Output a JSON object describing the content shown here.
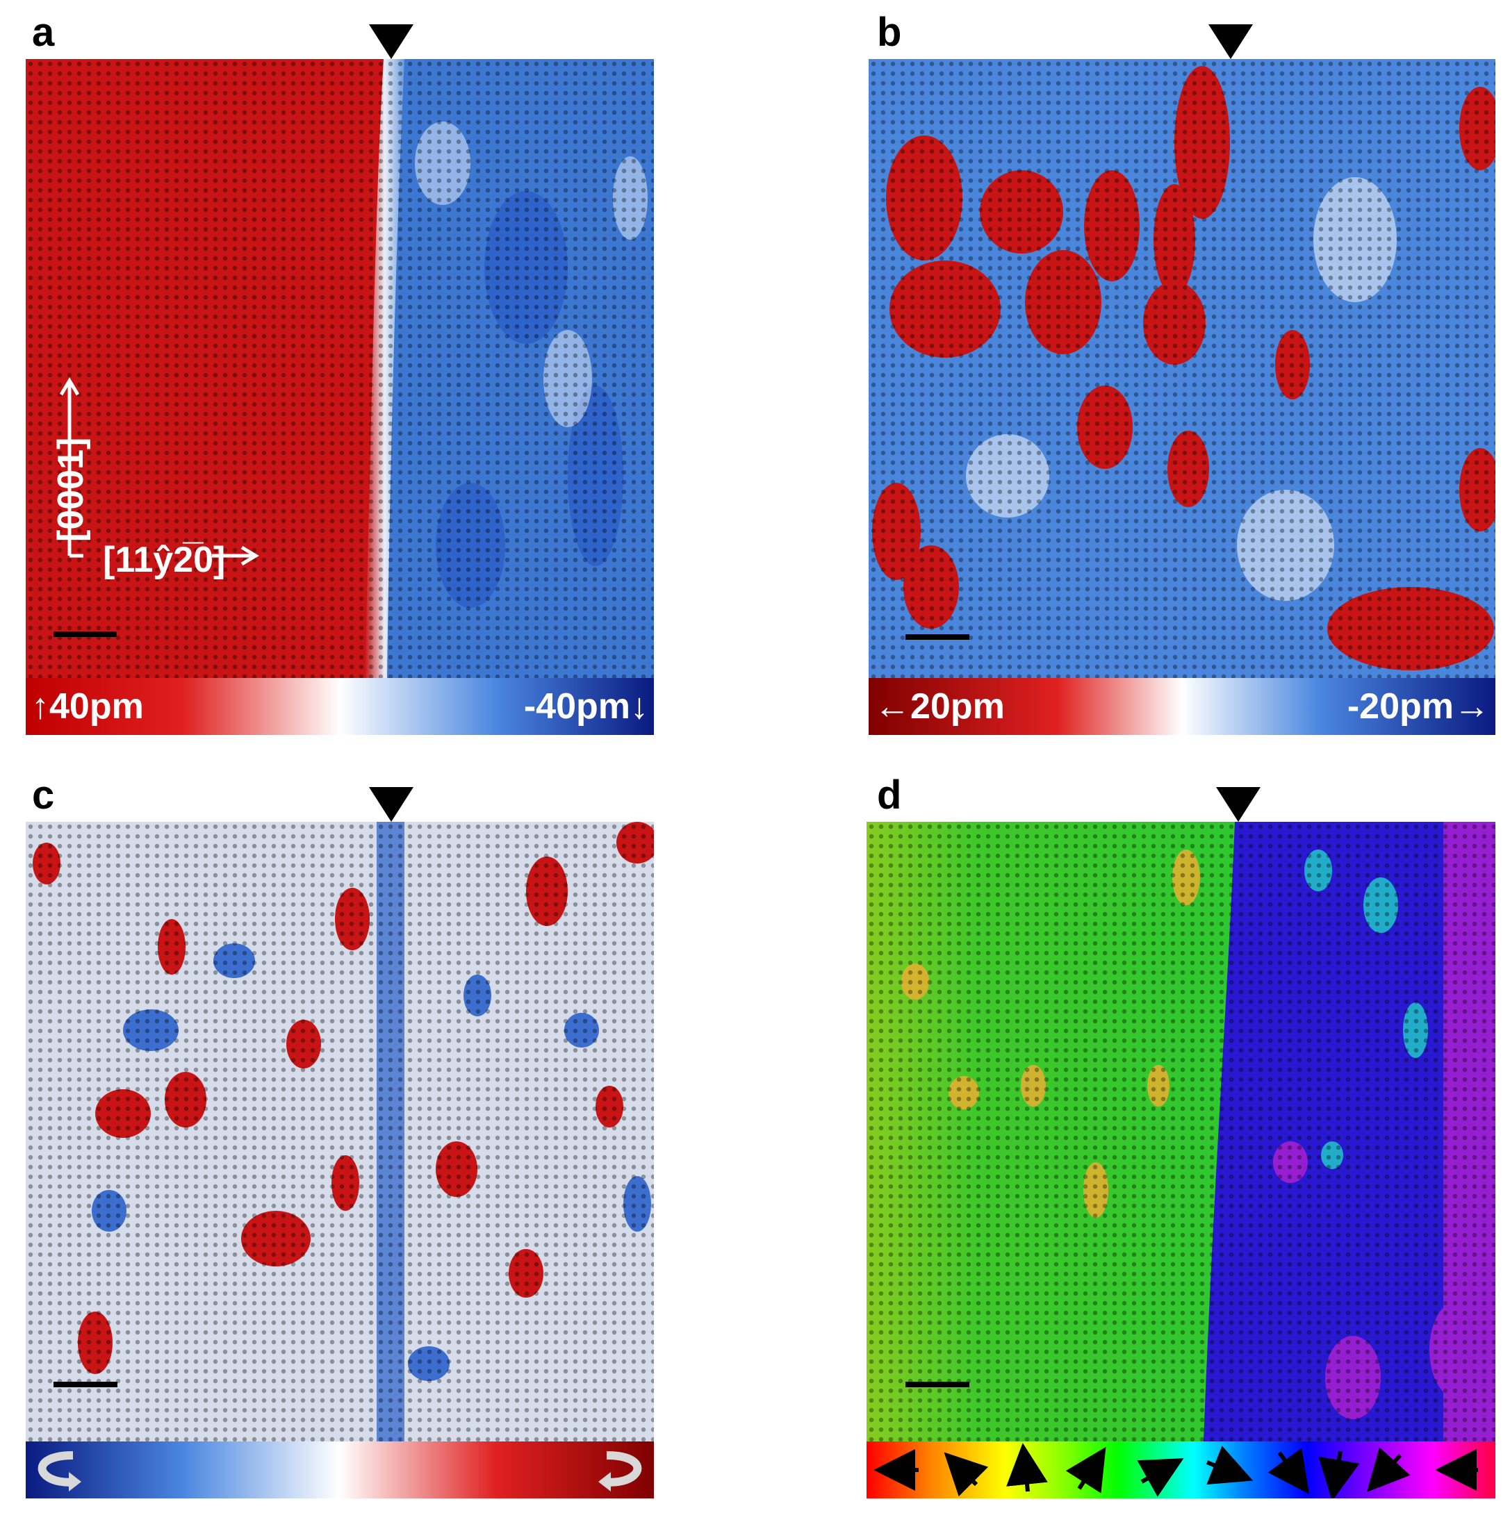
{
  "figure": {
    "panels": [
      {
        "id": "a",
        "letter": "a",
        "colorbar": {
          "left_label": "40pm",
          "right_label": "-40pm",
          "left_color": "#c00000",
          "mid_color": "#ffffff",
          "right_color": "#0a1a80"
        },
        "axes": {
          "vertical_label": "[0001]",
          "horizontal_label": "[11ŷ2̅0]"
        },
        "domain_colors": [
          "#c81414",
          "#3c78d2"
        ]
      },
      {
        "id": "b",
        "letter": "b",
        "colorbar": {
          "left_label": "20pm",
          "right_label": "-20pm",
          "left_color": "#800000",
          "mid_color": "#ffffff",
          "right_color": "#0a1a80"
        },
        "domain_colors": [
          "#c81414",
          "#3c78d2"
        ]
      },
      {
        "id": "c",
        "letter": "c",
        "colorbar": {
          "left_color": "#0a1a80",
          "mid_color": "#ffffff",
          "right_color": "#800000"
        },
        "domain_colors": [
          "#c81414",
          "#3c78d2"
        ]
      },
      {
        "id": "d",
        "letter": "d",
        "colorbar": {
          "hue_wheel": [
            "#ff0000",
            "#ff8000",
            "#ffff00",
            "#80ff00",
            "#00ff00",
            "#00ffff",
            "#0080ff",
            "#0000ff",
            "#8000ff",
            "#ff00ff",
            "#ff0040"
          ],
          "arrow_directions": [
            "left",
            "up-left",
            "up",
            "up-right",
            "right",
            "down-right",
            "down",
            "down",
            "down-left",
            "left"
          ]
        },
        "domain_colors": [
          "#2ec82e",
          "#2818d0"
        ]
      }
    ]
  }
}
